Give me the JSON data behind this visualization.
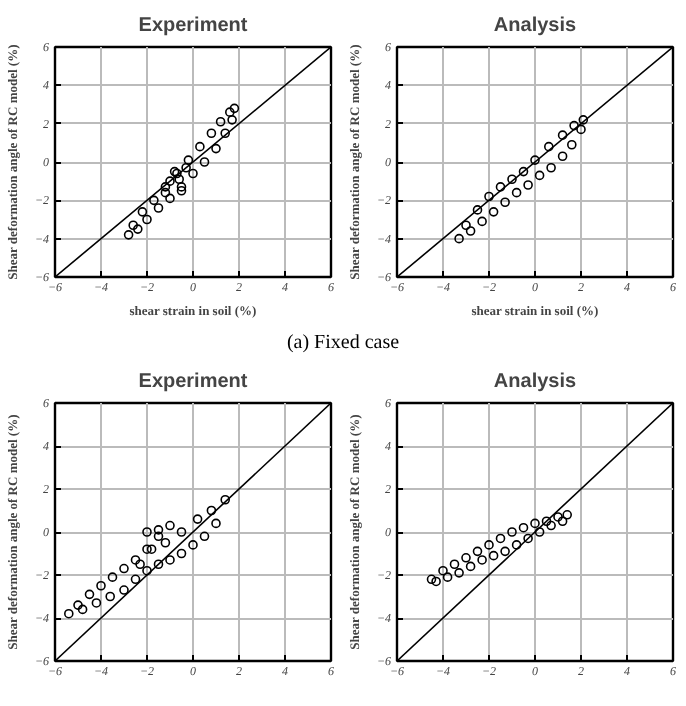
{
  "chart_data": [
    {
      "type": "scatter",
      "title": "Experiment",
      "xlabel": "shear strain in soil (%)",
      "ylabel": "Shear deformation angle of RC model (%)",
      "xlim": [
        -6,
        6
      ],
      "ylim": [
        -6,
        6
      ],
      "xticks": [
        -6,
        -4,
        -2,
        0,
        2,
        4,
        6
      ],
      "yticks": [
        -6,
        -4,
        -2,
        0,
        2,
        4,
        6
      ],
      "grid": true,
      "marker": "circle",
      "annotations": [
        "(a) Fixed case"
      ],
      "series": [
        {
          "color": "#000000",
          "x": [
            -2.8,
            -2.4,
            -2.0,
            -1.5,
            -1.0,
            -0.5,
            0.0,
            0.5,
            1.0,
            1.4,
            1.7,
            1.8,
            1.6,
            1.2,
            0.8,
            0.3,
            -0.2,
            -0.7,
            -1.2,
            -1.7,
            -2.2,
            -2.6,
            -1.0,
            -0.8,
            -0.5,
            -0.3,
            -1.2,
            -0.6
          ],
          "values": [
            -3.8,
            -3.5,
            -3.0,
            -2.4,
            -1.9,
            -1.3,
            -0.6,
            0.0,
            0.7,
            1.5,
            2.2,
            2.8,
            2.6,
            2.1,
            1.5,
            0.8,
            0.1,
            -0.6,
            -1.3,
            -2.0,
            -2.6,
            -3.3,
            -1.0,
            -0.5,
            -1.5,
            -0.3,
            -1.6,
            -0.9
          ]
        },
        {
          "type": "line",
          "marker": "none",
          "color": "#000000",
          "x": [
            -6,
            6
          ],
          "values": [
            -6,
            6
          ]
        }
      ]
    },
    {
      "type": "scatter",
      "title": "Analysis",
      "xlabel": "shear strain in soil (%)",
      "ylabel": "Shear deformation angle of RC model (%)",
      "xlim": [
        -6,
        6
      ],
      "ylim": [
        -6,
        6
      ],
      "xticks": [
        -6,
        -4,
        -2,
        0,
        2,
        4,
        6
      ],
      "yticks": [
        -6,
        -4,
        -2,
        0,
        2,
        4,
        6
      ],
      "grid": true,
      "marker": "circle",
      "series": [
        {
          "color": "#000000",
          "x": [
            -3.3,
            -2.8,
            -2.3,
            -1.8,
            -1.3,
            -0.8,
            -0.3,
            0.2,
            0.7,
            1.2,
            1.6,
            2.0,
            2.1,
            1.7,
            1.2,
            0.6,
            0.0,
            -0.5,
            -1.0,
            -1.5,
            -2.0,
            -2.5,
            -3.0
          ],
          "values": [
            -4.0,
            -3.6,
            -3.1,
            -2.6,
            -2.1,
            -1.6,
            -1.2,
            -0.7,
            -0.3,
            0.3,
            0.9,
            1.7,
            2.2,
            1.9,
            1.4,
            0.8,
            0.1,
            -0.5,
            -0.9,
            -1.3,
            -1.8,
            -2.5,
            -3.3
          ]
        },
        {
          "type": "line",
          "marker": "none",
          "color": "#000000",
          "x": [
            -6,
            6
          ],
          "values": [
            -6,
            6
          ]
        }
      ]
    },
    {
      "type": "scatter",
      "title": "Experiment",
      "ylabel": "Shear deformation angle of RC model (%)",
      "xlim": [
        -6,
        6
      ],
      "ylim": [
        -6,
        6
      ],
      "xticks": [
        -6,
        -4,
        -2,
        0,
        2,
        4,
        6
      ],
      "yticks": [
        -6,
        -4,
        -2,
        0,
        2,
        4,
        6
      ],
      "grid": true,
      "marker": "circle",
      "series": [
        {
          "color": "#000000",
          "x": [
            -5.4,
            -5.0,
            -4.5,
            -4.0,
            -3.5,
            -3.0,
            -2.5,
            -2.0,
            -1.5,
            -1.0,
            -4.8,
            -4.2,
            -3.6,
            -3.0,
            -2.5,
            -2.0,
            -1.5,
            -1.0,
            -0.5,
            0.0,
            0.5,
            1.0,
            1.4,
            0.8,
            0.2,
            -0.5,
            -1.2,
            -1.8,
            -2.0,
            -1.5,
            -2.3
          ],
          "values": [
            -3.8,
            -3.4,
            -2.9,
            -2.5,
            -2.1,
            -1.7,
            -1.3,
            -0.8,
            -0.2,
            0.3,
            -3.6,
            -3.3,
            -3.0,
            -2.7,
            -2.2,
            -1.8,
            -1.5,
            -1.3,
            -1.0,
            -0.6,
            -0.2,
            0.4,
            1.5,
            1.0,
            0.6,
            0.0,
            -0.5,
            -0.8,
            0.0,
            0.1,
            -1.5
          ]
        },
        {
          "type": "line",
          "marker": "none",
          "color": "#000000",
          "x": [
            -6,
            6
          ],
          "values": [
            -6,
            6
          ]
        }
      ]
    },
    {
      "type": "scatter",
      "title": "Analysis",
      "ylabel": "Shear deformation angle of RC model (%)",
      "xlim": [
        -6,
        6
      ],
      "ylim": [
        -6,
        6
      ],
      "xticks": [
        -6,
        -4,
        -2,
        0,
        2,
        4,
        6
      ],
      "yticks": [
        -6,
        -4,
        -2,
        0,
        2,
        4,
        6
      ],
      "grid": true,
      "marker": "circle",
      "series": [
        {
          "color": "#000000",
          "x": [
            -4.5,
            -4.0,
            -3.5,
            -3.0,
            -2.5,
            -2.0,
            -1.5,
            -1.0,
            -0.5,
            0.0,
            0.5,
            1.0,
            1.4,
            1.2,
            0.7,
            0.2,
            -0.3,
            -0.8,
            -1.3,
            -1.8,
            -2.3,
            -2.8,
            -3.3,
            -3.8,
            -4.3
          ],
          "values": [
            -2.2,
            -1.8,
            -1.5,
            -1.2,
            -0.9,
            -0.6,
            -0.3,
            0.0,
            0.2,
            0.4,
            0.5,
            0.7,
            0.8,
            0.5,
            0.3,
            0.0,
            -0.3,
            -0.6,
            -0.9,
            -1.1,
            -1.3,
            -1.6,
            -1.9,
            -2.1,
            -2.3
          ]
        },
        {
          "type": "line",
          "marker": "none",
          "color": "#000000",
          "x": [
            -6,
            6
          ],
          "values": [
            -6,
            6
          ]
        }
      ]
    }
  ]
}
